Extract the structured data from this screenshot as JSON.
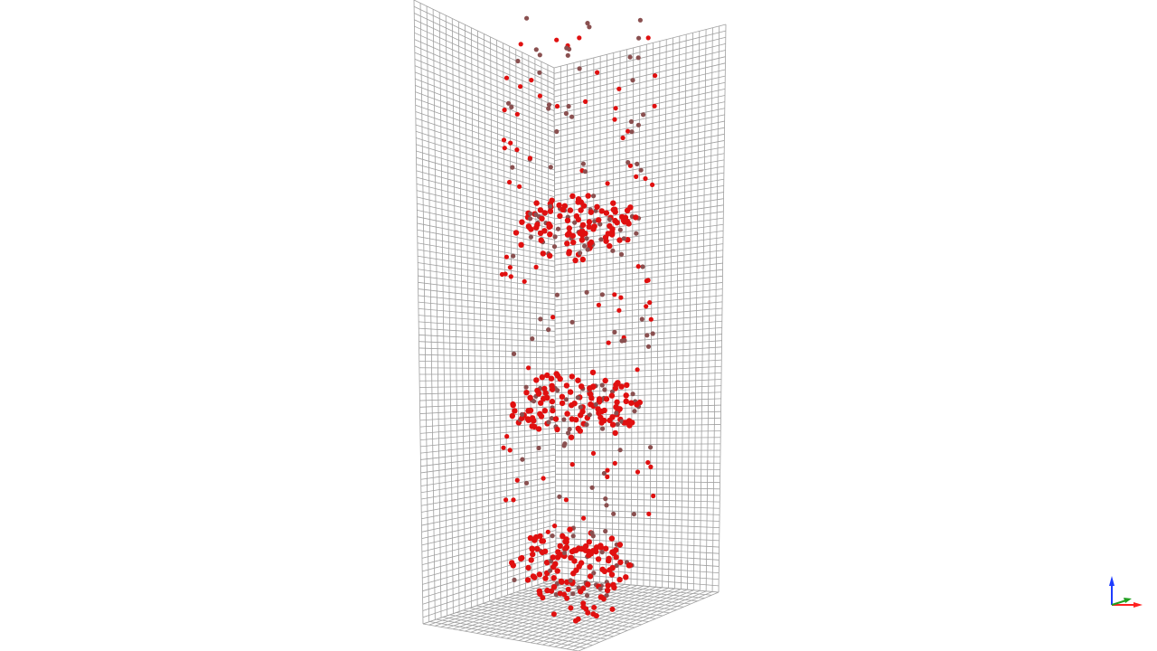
{
  "viewer": {
    "background": "#ffffff",
    "grid_color": "#a0a0a0",
    "particle_color": "#e01010",
    "particle_shadow_color": "#8a5050",
    "grid_planes": [
      "back-left-wall",
      "back-right-wall",
      "floor"
    ],
    "particle_clusters": [
      "upper-ring",
      "middle-ring",
      "lower-ring",
      "bottom-pile"
    ]
  },
  "axes_triad": {
    "icon": "axes-triad-icon",
    "z_axis_color": "#1e3cff",
    "x_axis_color": "#ff2020",
    "y_axis_color": "#20a020"
  }
}
